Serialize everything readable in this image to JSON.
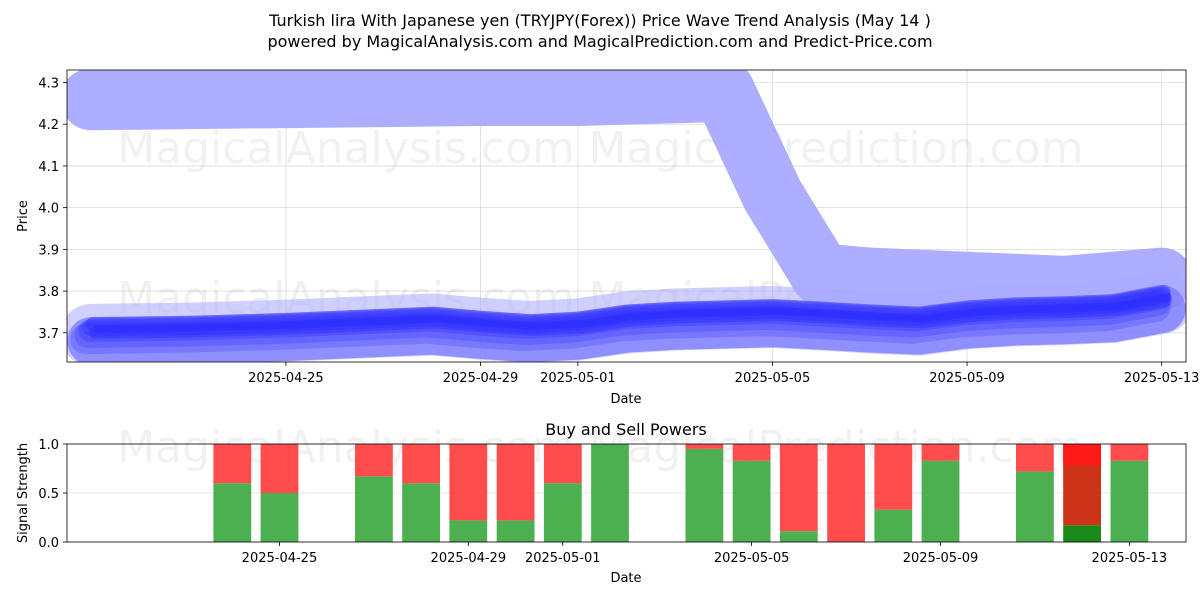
{
  "title_line1": "Turkish lira With Japanese yen (TRYJPY(Forex)) Price Wave Trend Analysis (May 14 )",
  "title_line2": "powered by MagicalAnalysis.com and MagicalPrediction.com and Predict-Price.com",
  "watermarks": [
    "MagicalAnalysis.com",
    "MagicalPrediction.com"
  ],
  "colors": {
    "wave_light": "#aaaaff",
    "wave_dark": "#2a2aff",
    "buy": "#4caf50",
    "sell": "#ff4d4d",
    "buy_strong": "#1a8a1a",
    "sell_strong": "#ff1a1a",
    "mixed": "#cc3319"
  },
  "chart_data": [
    {
      "type": "area",
      "title": "",
      "xlabel": "Date",
      "ylabel": "Price",
      "ylim": [
        3.63,
        4.33
      ],
      "x_range": [
        "2025-04-21",
        "2025-05-14"
      ],
      "x_ticks": [
        "2025-04-25",
        "2025-04-29",
        "2025-05-01",
        "2025-05-05",
        "2025-05-09",
        "2025-05-13"
      ],
      "y_ticks": [
        3.7,
        3.8,
        3.9,
        4.0,
        4.1,
        4.2,
        4.3
      ],
      "grid": true,
      "series": [
        {
          "x": [
            "2025-04-21",
            "2025-04-25",
            "2025-04-29",
            "2025-05-01",
            "2025-05-04",
            "2025-05-05",
            "2025-05-06",
            "2025-05-07",
            "2025-05-09",
            "2025-05-11",
            "2025-05-13"
          ],
          "y": [
            4.26,
            4.265,
            4.27,
            4.27,
            4.28,
            4.03,
            3.84,
            3.83,
            3.82,
            3.81,
            3.83
          ]
        },
        {
          "x": [
            "2025-04-21",
            "2025-04-23",
            "2025-04-25",
            "2025-04-27",
            "2025-04-28",
            "2025-04-29",
            "2025-04-30",
            "2025-05-01",
            "2025-05-02",
            "2025-05-03",
            "2025-05-05",
            "2025-05-06",
            "2025-05-07",
            "2025-05-08",
            "2025-05-09",
            "2025-05-10",
            "2025-05-11",
            "2025-05-12",
            "2025-05-13"
          ],
          "y": [
            3.705,
            3.708,
            3.715,
            3.725,
            3.73,
            3.72,
            3.712,
            3.718,
            3.735,
            3.742,
            3.748,
            3.742,
            3.735,
            3.73,
            3.745,
            3.752,
            3.755,
            3.76,
            3.782
          ]
        }
      ]
    },
    {
      "type": "bar",
      "title": "Buy and Sell Powers",
      "xlabel": "Date",
      "ylabel": "Signal Strength",
      "ylim": [
        0,
        1
      ],
      "x_ticks": [
        "2025-04-25",
        "2025-04-29",
        "2025-05-01",
        "2025-05-05",
        "2025-05-09",
        "2025-05-13"
      ],
      "y_ticks": [
        "0.0",
        "0.5",
        "1.0"
      ],
      "grid": true,
      "categories": [
        "2025-04-24",
        "2025-04-25",
        "2025-04-27",
        "2025-04-28",
        "2025-04-29",
        "2025-04-30",
        "2025-05-01",
        "2025-05-02",
        "2025-05-04",
        "2025-05-05",
        "2025-05-06",
        "2025-05-07",
        "2025-05-08",
        "2025-05-09",
        "2025-05-11",
        "2025-05-12",
        "2025-05-13"
      ],
      "series": [
        {
          "values": [
            0.6,
            0.5,
            0.67,
            0.6,
            0.22,
            0.22,
            0.6,
            1.0,
            0.95,
            0.83,
            0.11,
            0.0,
            0.33,
            0.83,
            0.72,
            0.17,
            0.83
          ]
        },
        {
          "values": [
            0.4,
            0.5,
            0.33,
            0.4,
            0.78,
            0.78,
            0.4,
            0.0,
            0.05,
            0.17,
            0.89,
            1.0,
            0.67,
            0.17,
            0.28,
            0.83,
            0.17
          ]
        }
      ]
    }
  ]
}
